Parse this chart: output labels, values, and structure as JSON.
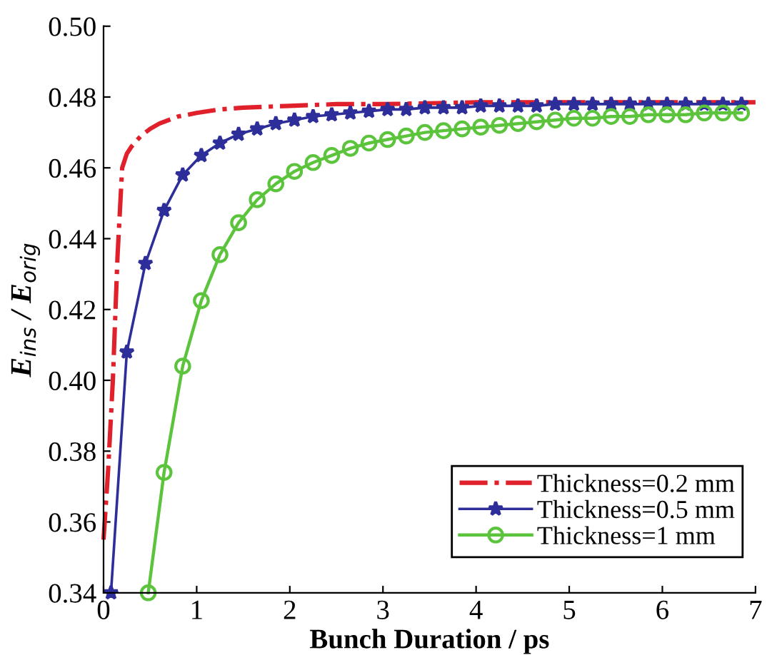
{
  "chart_data": {
    "type": "line",
    "xlabel": "Bunch Duration / ps",
    "ylabel": "E$_{ins}$ / E$_{orig}$",
    "xlim": [
      0,
      7
    ],
    "xticks": [
      0,
      1,
      2,
      3,
      4,
      5,
      6,
      7
    ],
    "ylim": [
      0.34,
      0.5
    ],
    "yticks": [
      0.34,
      0.36,
      0.38,
      {
        "value": 0.4,
        "label": "0.40"
      },
      0.42,
      0.44,
      0.46,
      0.48,
      {
        "value": 0.5,
        "label": "0.50"
      }
    ],
    "grid": false,
    "legend": "bottom right",
    "series": [
      {
        "name": "Thickness=0.2 mm",
        "color": "#e0202a",
        "line_style": "dashdot",
        "marker": "none",
        "x": [
          0.0,
          0.05,
          0.1,
          0.15,
          0.2,
          0.25,
          0.3,
          0.4,
          0.5,
          0.6,
          0.8,
          1.0,
          1.25,
          1.5,
          2,
          2.5,
          3,
          4,
          5,
          6,
          7
        ],
        "values": [
          0.355,
          0.375,
          0.4,
          0.435,
          0.46,
          0.464,
          0.466,
          0.469,
          0.471,
          0.4725,
          0.4745,
          0.4755,
          0.4765,
          0.477,
          0.4775,
          0.478,
          0.478,
          0.4785,
          0.4785,
          0.4785,
          0.4785
        ]
      },
      {
        "name": "Thickness=0.5 mm",
        "color": "#2e2e9a",
        "line_style": "solid",
        "marker": "star",
        "x": [
          0.08,
          0.25,
          0.45,
          0.65,
          0.85,
          1.05,
          1.25,
          1.45,
          1.65,
          1.85,
          2.05,
          2.25,
          2.45,
          2.65,
          2.85,
          3.05,
          3.25,
          3.45,
          3.65,
          3.85,
          4.05,
          4.25,
          4.45,
          4.65,
          4.85,
          5.05,
          5.25,
          5.45,
          5.65,
          5.85,
          6.05,
          6.25,
          6.45,
          6.65,
          6.85
        ],
        "values": [
          0.34,
          0.408,
          0.433,
          0.448,
          0.458,
          0.4635,
          0.467,
          0.4695,
          0.471,
          0.4725,
          0.4735,
          0.4745,
          0.475,
          0.4755,
          0.476,
          0.4765,
          0.4765,
          0.477,
          0.477,
          0.477,
          0.4775,
          0.4775,
          0.4775,
          0.4775,
          0.478,
          0.478,
          0.478,
          0.478,
          0.478,
          0.478,
          0.478,
          0.478,
          0.478,
          0.478,
          0.478
        ]
      },
      {
        "name": "Thickness=1 mm",
        "color": "#5cc43c",
        "line_style": "solid",
        "marker": "circle",
        "x": [
          0.48,
          0.65,
          0.85,
          1.05,
          1.25,
          1.45,
          1.65,
          1.85,
          2.05,
          2.25,
          2.45,
          2.65,
          2.85,
          3.05,
          3.25,
          3.45,
          3.65,
          3.85,
          4.05,
          4.25,
          4.45,
          4.65,
          4.85,
          5.05,
          5.25,
          5.45,
          5.65,
          5.85,
          6.05,
          6.25,
          6.45,
          6.65,
          6.85
        ],
        "values": [
          0.34,
          0.374,
          0.404,
          0.4225,
          0.4355,
          0.4445,
          0.451,
          0.4555,
          0.459,
          0.4615,
          0.4635,
          0.4655,
          0.467,
          0.468,
          0.469,
          0.47,
          0.4705,
          0.471,
          0.4715,
          0.472,
          0.4725,
          0.473,
          0.4735,
          0.474,
          0.474,
          0.4745,
          0.4745,
          0.475,
          0.475,
          0.475,
          0.4755,
          0.4755,
          0.4755
        ]
      }
    ]
  }
}
